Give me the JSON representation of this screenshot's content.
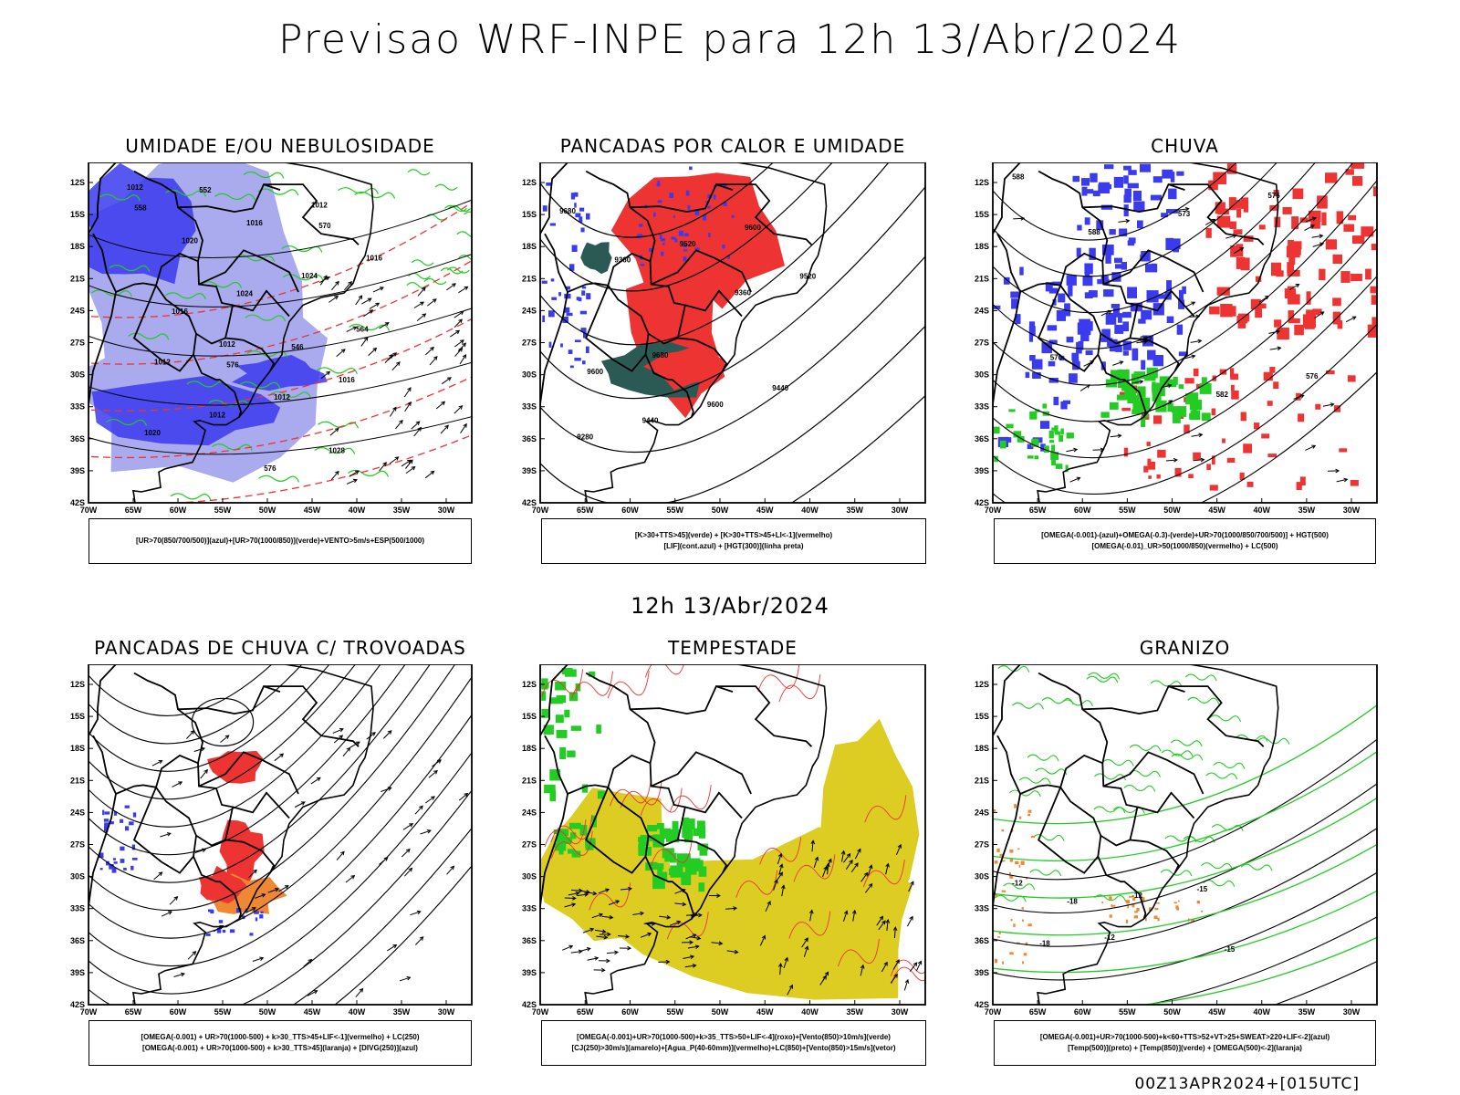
{
  "header": {
    "title": "Previsao WRF-INPE  para 12h 13/Abr/2024",
    "subtitle": "12h 13/Abr/2024"
  },
  "axes": {
    "lat_labels": [
      "12S",
      "15S",
      "18S",
      "21S",
      "24S",
      "27S",
      "30S",
      "33S",
      "36S",
      "39S",
      "42S"
    ],
    "lon_labels": [
      "70W",
      "65W",
      "60W",
      "55W",
      "50W",
      "45W",
      "40W",
      "35W",
      "30W"
    ]
  },
  "panels": [
    {
      "title": "UMIDADE E/OU NEBULOSIDADE",
      "legend": [
        "[UR>70(850/700/500)](azul)+[UR>70(1000/850)](verde)+VENTO>5m/s+ESP(500/1000)"
      ],
      "contour_labels": [
        "1012",
        "1012",
        "1012",
        "1012",
        "1016",
        "1016",
        "1020",
        "1012",
        "1016",
        "1012",
        "1024",
        "1020",
        "1024",
        "1028",
        "1016",
        "576",
        "564",
        "552",
        "546",
        "558",
        "576",
        "570"
      ]
    },
    {
      "title": "PANCADAS POR CALOR E UMIDADE",
      "legend": [
        "[K>30+TTS>45](verde) + [K>30+TTS>45+LI<-1](vermelho)",
        "[LIF](cont.azul) + [HGT(300)](linha preta)"
      ],
      "contour_labels": [
        "9680",
        "9680",
        "9600",
        "9600",
        "9520",
        "9440",
        "9360",
        "9600",
        "9520",
        "9440",
        "9360",
        "9280"
      ]
    },
    {
      "title": "CHUVA",
      "legend": [
        "[OMEGA(-0.001)-(azul)+OMEGA(-0.3)-(verde)+UR>70(1000/850/700/500)] + HGT(500)",
        "[OMEGA(-0.01)_UR>50(1000/850)(vermelho) + LC(500)"
      ],
      "contour_labels": [
        "588",
        "582",
        "576",
        "570",
        "573",
        "576",
        "588",
        "582"
      ]
    },
    {
      "title": "PANCADAS DE CHUVA C/ TROVOADAS",
      "legend": [
        "[OMEGA(-0.001) + UR>70(1000-500) + k>30_TTS>45+LIF<-1](vermelho) + LC(250)",
        "[OMEGA(-0.001) + UR>70(1000-500) + k>30_TTS>45](laranja) + [DIVG(250)](azul)"
      ],
      "contour_labels": []
    },
    {
      "title": "TEMPESTADE",
      "legend": [
        "[OMEGA(-0.001)+UR>70(1000-500)+k>35_TTS>50+LIF<-4](roxo)+[Vento(850)>10m/s](verde)",
        "[CJ(250)>30m/s](amarelo)+[Agua_P(40-60mm)](vermelho)+LC(850)+[Vento(850)>15m/s](vetor)"
      ],
      "contour_labels": []
    },
    {
      "title": "GRANIZO",
      "legend": [
        "[OMEGA(-0.001)+UR>70(1000-500)+k<60+TTS>52+VT>25+SWEAT>220+LIF<-2](azul)",
        "[Temp(500)](preto) + [Temp(850)](verde) + [OMEGA(500)<-2](laranja)"
      ],
      "contour_labels": [
        "-12",
        "-12",
        "-15",
        "-18",
        "-12",
        "-15",
        "-18"
      ]
    }
  ],
  "footer": "00Z13APR2024+[015UTC]",
  "colors": {
    "blue": "#3a3aee",
    "light_blue": "#aaaaee",
    "green": "#22cc22",
    "red": "#ee3333",
    "dark_teal": "#2b5a55",
    "orange": "#ee8833",
    "yellow": "#ddcc22",
    "black": "#000000"
  }
}
